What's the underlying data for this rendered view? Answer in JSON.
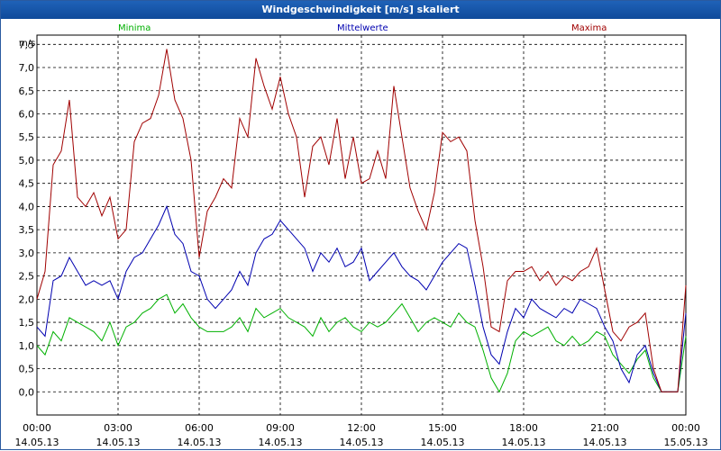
{
  "window": {
    "title": "Windgeschwindigkeit [m/s] skaliert"
  },
  "legend": [
    {
      "label": "Minima",
      "color": "#00b000"
    },
    {
      "label": "Mittelwerte",
      "color": "#0000b0"
    },
    {
      "label": "Maxima",
      "color": "#a00000"
    }
  ],
  "chart_data": {
    "type": "line",
    "title": "Windgeschwindigkeit [m/s] skaliert",
    "ylabel": "m/s",
    "ylim": [
      -0.5,
      7.7
    ],
    "xlim": [
      0,
      24
    ],
    "yticks": [
      0.0,
      0.5,
      1.0,
      1.5,
      2.0,
      2.5,
      3.0,
      3.5,
      4.0,
      4.5,
      5.0,
      5.5,
      6.0,
      6.5,
      7.0,
      7.5
    ],
    "ytick_labels": [
      "0,0",
      "0,5",
      "1,0",
      "1,5",
      "2,0",
      "2,5",
      "3,0",
      "3,5",
      "4,0",
      "4,5",
      "5,0",
      "5,5",
      "6,0",
      "6,5",
      "7,0",
      "7,5"
    ],
    "xticks": [
      0,
      3,
      6,
      9,
      12,
      15,
      18,
      21,
      24
    ],
    "xtick_labels": [
      {
        "time": "00:00",
        "date": "14.05.13"
      },
      {
        "time": "03:00",
        "date": "14.05.13"
      },
      {
        "time": "06:00",
        "date": "14.05.13"
      },
      {
        "time": "09:00",
        "date": "14.05.13"
      },
      {
        "time": "12:00",
        "date": "14.05.13"
      },
      {
        "time": "15:00",
        "date": "14.05.13"
      },
      {
        "time": "18:00",
        "date": "14.05.13"
      },
      {
        "time": "21:00",
        "date": "14.05.13"
      },
      {
        "time": "00:00",
        "date": "15.05.13"
      }
    ],
    "grid": true,
    "series": [
      {
        "name": "Minima",
        "color": "#00b000",
        "x": [
          0,
          0.3,
          0.6,
          0.9,
          1.2,
          1.5,
          1.8,
          2.1,
          2.4,
          2.7,
          3.0,
          3.3,
          3.6,
          3.9,
          4.2,
          4.5,
          4.8,
          5.1,
          5.4,
          5.7,
          6.0,
          6.3,
          6.6,
          6.9,
          7.2,
          7.5,
          7.8,
          8.1,
          8.4,
          8.7,
          9.0,
          9.3,
          9.6,
          9.9,
          10.2,
          10.5,
          10.8,
          11.1,
          11.4,
          11.7,
          12.0,
          12.3,
          12.6,
          12.9,
          13.2,
          13.5,
          13.8,
          14.1,
          14.4,
          14.7,
          15.0,
          15.3,
          15.6,
          15.9,
          16.2,
          16.5,
          16.8,
          17.1,
          17.4,
          17.7,
          18.0,
          18.3,
          18.6,
          18.9,
          19.2,
          19.5,
          19.8,
          20.1,
          20.4,
          20.7,
          21.0,
          21.3,
          21.6,
          21.9,
          22.2,
          22.5,
          22.8,
          23.1,
          23.4,
          23.7,
          24.0
        ],
        "values": [
          1.0,
          0.8,
          1.3,
          1.1,
          1.6,
          1.5,
          1.4,
          1.3,
          1.1,
          1.5,
          1.0,
          1.4,
          1.5,
          1.7,
          1.8,
          2.0,
          2.1,
          1.7,
          1.9,
          1.6,
          1.4,
          1.3,
          1.3,
          1.3,
          1.4,
          1.6,
          1.3,
          1.8,
          1.6,
          1.7,
          1.8,
          1.6,
          1.5,
          1.4,
          1.2,
          1.6,
          1.3,
          1.5,
          1.6,
          1.4,
          1.3,
          1.5,
          1.4,
          1.5,
          1.7,
          1.9,
          1.6,
          1.3,
          1.5,
          1.6,
          1.5,
          1.4,
          1.7,
          1.5,
          1.4,
          0.9,
          0.3,
          0.0,
          0.4,
          1.1,
          1.3,
          1.2,
          1.3,
          1.4,
          1.1,
          1.0,
          1.2,
          1.0,
          1.1,
          1.3,
          1.2,
          0.8,
          0.6,
          0.4,
          0.7,
          0.9,
          0.3,
          0.0,
          0.0,
          0.0,
          1.2
        ]
      },
      {
        "name": "Mittelwerte",
        "color": "#0000b0",
        "x": [
          0,
          0.3,
          0.6,
          0.9,
          1.2,
          1.5,
          1.8,
          2.1,
          2.4,
          2.7,
          3.0,
          3.3,
          3.6,
          3.9,
          4.2,
          4.5,
          4.8,
          5.1,
          5.4,
          5.7,
          6.0,
          6.3,
          6.6,
          6.9,
          7.2,
          7.5,
          7.8,
          8.1,
          8.4,
          8.7,
          9.0,
          9.3,
          9.6,
          9.9,
          10.2,
          10.5,
          10.8,
          11.1,
          11.4,
          11.7,
          12.0,
          12.3,
          12.6,
          12.9,
          13.2,
          13.5,
          13.8,
          14.1,
          14.4,
          14.7,
          15.0,
          15.3,
          15.6,
          15.9,
          16.2,
          16.5,
          16.8,
          17.1,
          17.4,
          17.7,
          18.0,
          18.3,
          18.6,
          18.9,
          19.2,
          19.5,
          19.8,
          20.1,
          20.4,
          20.7,
          21.0,
          21.3,
          21.6,
          21.9,
          22.2,
          22.5,
          22.8,
          23.1,
          23.4,
          23.7,
          24.0
        ],
        "values": [
          1.4,
          1.2,
          2.4,
          2.5,
          2.9,
          2.6,
          2.3,
          2.4,
          2.3,
          2.4,
          2.0,
          2.6,
          2.9,
          3.0,
          3.3,
          3.6,
          4.0,
          3.4,
          3.2,
          2.6,
          2.5,
          2.0,
          1.8,
          2.0,
          2.2,
          2.6,
          2.3,
          3.0,
          3.3,
          3.4,
          3.7,
          3.5,
          3.3,
          3.1,
          2.6,
          3.0,
          2.8,
          3.1,
          2.7,
          2.8,
          3.1,
          2.4,
          2.6,
          2.8,
          3.0,
          2.7,
          2.5,
          2.4,
          2.2,
          2.5,
          2.8,
          3.0,
          3.2,
          3.1,
          2.3,
          1.4,
          0.8,
          0.6,
          1.3,
          1.8,
          1.6,
          2.0,
          1.8,
          1.7,
          1.6,
          1.8,
          1.7,
          2.0,
          1.9,
          1.8,
          1.4,
          1.1,
          0.5,
          0.2,
          0.8,
          1.0,
          0.4,
          0.0,
          0.0,
          0.0,
          1.7
        ]
      },
      {
        "name": "Maxima",
        "color": "#a00000",
        "x": [
          0,
          0.3,
          0.6,
          0.9,
          1.2,
          1.5,
          1.8,
          2.1,
          2.4,
          2.7,
          3.0,
          3.3,
          3.6,
          3.9,
          4.2,
          4.5,
          4.8,
          5.1,
          5.4,
          5.7,
          6.0,
          6.3,
          6.6,
          6.9,
          7.2,
          7.5,
          7.8,
          8.1,
          8.4,
          8.7,
          9.0,
          9.3,
          9.6,
          9.9,
          10.2,
          10.5,
          10.8,
          11.1,
          11.4,
          11.7,
          12.0,
          12.3,
          12.6,
          12.9,
          13.2,
          13.5,
          13.8,
          14.1,
          14.4,
          14.7,
          15.0,
          15.3,
          15.6,
          15.9,
          16.2,
          16.5,
          16.8,
          17.1,
          17.4,
          17.7,
          18.0,
          18.3,
          18.6,
          18.9,
          19.2,
          19.5,
          19.8,
          20.1,
          20.4,
          20.7,
          21.0,
          21.3,
          21.6,
          21.9,
          22.2,
          22.5,
          22.8,
          23.1,
          23.4,
          23.7,
          24.0
        ],
        "values": [
          2.0,
          2.6,
          4.9,
          5.2,
          6.3,
          4.2,
          4.0,
          4.3,
          3.8,
          4.2,
          3.3,
          3.5,
          5.4,
          5.8,
          5.9,
          6.4,
          7.4,
          6.3,
          5.9,
          5.0,
          2.9,
          3.9,
          4.2,
          4.6,
          4.4,
          5.9,
          5.5,
          7.2,
          6.6,
          6.1,
          6.8,
          6.0,
          5.5,
          4.2,
          5.3,
          5.5,
          4.9,
          5.9,
          4.6,
          5.5,
          4.5,
          4.6,
          5.2,
          4.6,
          6.6,
          5.5,
          4.4,
          3.9,
          3.5,
          4.3,
          5.6,
          5.4,
          5.5,
          5.2,
          3.7,
          2.7,
          1.4,
          1.3,
          2.4,
          2.6,
          2.6,
          2.7,
          2.4,
          2.6,
          2.3,
          2.5,
          2.4,
          2.6,
          2.7,
          3.1,
          2.2,
          1.3,
          1.1,
          1.4,
          1.5,
          1.7,
          0.5,
          0.0,
          0.0,
          0.0,
          2.3
        ]
      }
    ]
  }
}
